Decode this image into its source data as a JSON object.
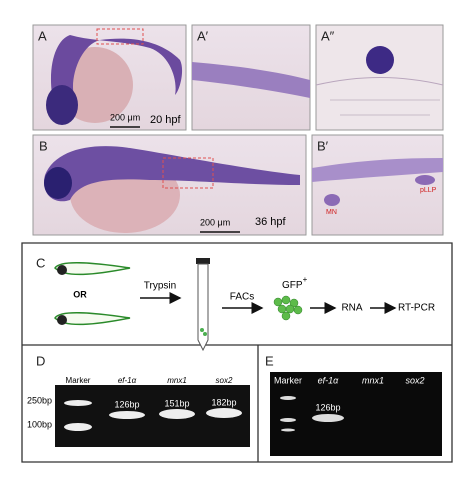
{
  "panels": {
    "a": {
      "label": "A",
      "scale_bar": "200 μm",
      "stage": "20 hpf"
    },
    "a1": {
      "label": "A′"
    },
    "a2": {
      "label": "A″"
    },
    "b": {
      "label": "B",
      "scale_bar": "200 μm",
      "stage": "36 hpf"
    },
    "b1": {
      "label": "B′",
      "annotations": [
        "MN",
        "pLLP"
      ]
    }
  },
  "workflow": {
    "label": "C",
    "or": "OR",
    "steps": [
      "Trypsin",
      "FACs",
      "RNA",
      "RT-PCR"
    ],
    "gfp": "GFP",
    "gfp_sup": "+"
  },
  "gels": [
    {
      "label": "D",
      "lanes": [
        "Marker",
        "ef-1α",
        "mnx1",
        "sox2"
      ],
      "size_markers": [
        "250bp",
        "100bp"
      ],
      "band_labels": [
        "126bp",
        "151bp",
        "182bp"
      ]
    },
    {
      "label": "E",
      "lanes": [
        "Marker",
        "ef-1α",
        "mnx1",
        "sox2"
      ],
      "band_labels": [
        "126bp"
      ]
    }
  ]
}
